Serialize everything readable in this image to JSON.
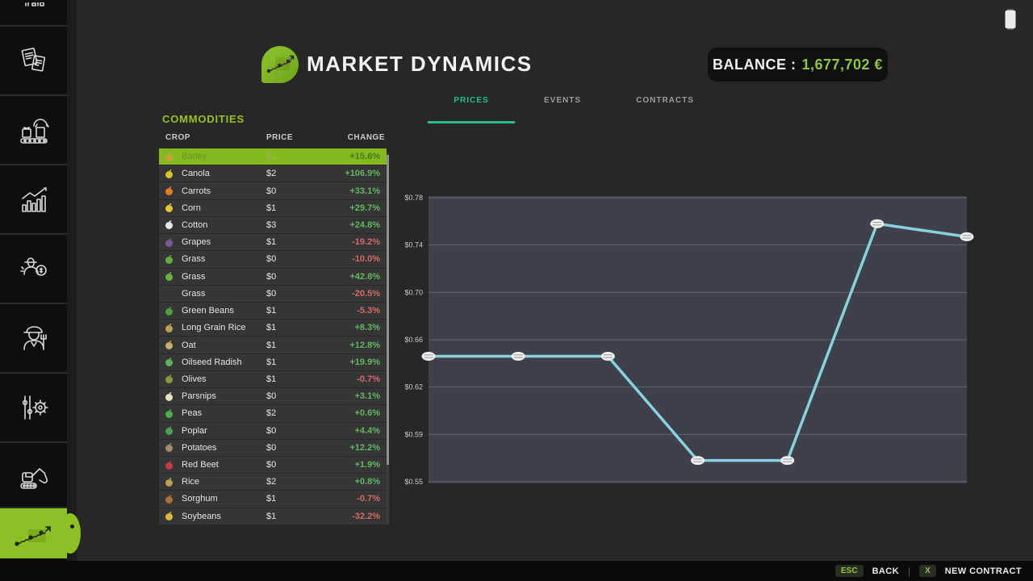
{
  "header": {
    "title": "MARKET DYNAMICS",
    "balance_label": "BALANCE :",
    "balance_value": "1,677,702 €",
    "accent_green": "#8cc024",
    "accent_teal": "#27bd8f"
  },
  "tabs": {
    "items": [
      {
        "label": "PRICES",
        "active": true
      },
      {
        "label": "EVENTS",
        "active": false
      },
      {
        "label": "CONTRACTS",
        "active": false
      }
    ]
  },
  "sidebar": {
    "icons": [
      "animal-partial-icon",
      "documents-icon",
      "production-line-icon",
      "statistics-icon",
      "farmer-finance-icon",
      "farmer-icon",
      "settings-sliders-gear-icon",
      "excavator-icon",
      "market-dynamics-icon"
    ],
    "active_item": "market-dynamics"
  },
  "status_icons": [
    "battery-icon"
  ],
  "commodities": {
    "section_title": "COMMODITIES",
    "columns": [
      "CROP",
      "PRICE",
      "CHANGE"
    ],
    "rows": [
      {
        "crop": "Barley",
        "price": "$1",
        "change": "+15.6%",
        "selected": true,
        "icon_color": "#c7a23c"
      },
      {
        "crop": "Canola",
        "price": "$2",
        "change": "+106.9%",
        "selected": false,
        "icon_color": "#d4c433"
      },
      {
        "crop": "Carrots",
        "price": "$0",
        "change": "+33.1%",
        "selected": false,
        "icon_color": "#e07b2a"
      },
      {
        "crop": "Corn",
        "price": "$1",
        "change": "+29.7%",
        "selected": false,
        "icon_color": "#e5c63a"
      },
      {
        "crop": "Cotton",
        "price": "$3",
        "change": "+24.8%",
        "selected": false,
        "icon_color": "#e9e9e2"
      },
      {
        "crop": "Grapes",
        "price": "$1",
        "change": "-19.2%",
        "selected": false,
        "icon_color": "#7a5a9e"
      },
      {
        "crop": "Grass",
        "price": "$0",
        "change": "-10.0%",
        "selected": false,
        "icon_color": "#5fae3f"
      },
      {
        "crop": "Grass",
        "price": "$0",
        "change": "+42.8%",
        "selected": false,
        "icon_color": "#6cb042"
      },
      {
        "crop": "Grass",
        "price": "$0",
        "change": "-20.5%",
        "selected": false,
        "icon_color": null
      },
      {
        "crop": "Green Beans",
        "price": "$1",
        "change": "-5.3%",
        "selected": false,
        "icon_color": "#4f9e3f"
      },
      {
        "crop": "Long Grain Rice",
        "price": "$1",
        "change": "+8.3%",
        "selected": false,
        "icon_color": "#b9a050"
      },
      {
        "crop": "Oat",
        "price": "$1",
        "change": "+12.8%",
        "selected": false,
        "icon_color": "#c9b06a"
      },
      {
        "crop": "Oilseed Radish",
        "price": "$1",
        "change": "+19.9%",
        "selected": false,
        "icon_color": "#5fae5f"
      },
      {
        "crop": "Olives",
        "price": "$1",
        "change": "-0.7%",
        "selected": false,
        "icon_color": "#8a9a3a"
      },
      {
        "crop": "Parsnips",
        "price": "$0",
        "change": "+3.1%",
        "selected": false,
        "icon_color": "#e8e0c0"
      },
      {
        "crop": "Peas",
        "price": "$2",
        "change": "+0.6%",
        "selected": false,
        "icon_color": "#4fae4f"
      },
      {
        "crop": "Poplar",
        "price": "$0",
        "change": "+4.4%",
        "selected": false,
        "icon_color": "#4f9e4f"
      },
      {
        "crop": "Potatoes",
        "price": "$0",
        "change": "+12.2%",
        "selected": false,
        "icon_color": "#a08a6a"
      },
      {
        "crop": "Red Beet",
        "price": "$0",
        "change": "+1.9%",
        "selected": false,
        "icon_color": "#c43a4a"
      },
      {
        "crop": "Rice",
        "price": "$2",
        "change": "+0.8%",
        "selected": false,
        "icon_color": "#b9a050"
      },
      {
        "crop": "Sorghum",
        "price": "$1",
        "change": "-0.7%",
        "selected": false,
        "icon_color": "#a8743a"
      },
      {
        "crop": "Soybeans",
        "price": "$1",
        "change": "-32.2%",
        "selected": false,
        "icon_color": "#d8b83a"
      }
    ]
  },
  "chart_data": {
    "type": "line",
    "title": "",
    "xlabel": "",
    "ylabel": "",
    "selected_commodity": "Barley",
    "y_axis_tick_labels": [
      "$0.78",
      "$0.74",
      "$0.70",
      "$0.66",
      "$0.62",
      "$0.59",
      "$0.55"
    ],
    "y_tick_values": [
      0.78,
      0.74,
      0.7,
      0.66,
      0.62,
      0.59,
      0.55
    ],
    "series": [
      {
        "name": "Barley price",
        "values": [
          0.646,
          0.646,
          0.646,
          0.568,
          0.568,
          0.758,
          0.747
        ]
      }
    ],
    "x_tick_labels_visible": false,
    "grid": true,
    "legend": false,
    "line_color": "#8bd0de",
    "marker_color": "#efefef",
    "plot_bg": "#3e414b",
    "grid_color": "#61646f"
  },
  "footer": {
    "esc_key": "ESC",
    "back_label": "BACK",
    "divider": "|",
    "x_key": "X",
    "new_contract_label": "NEW CONTRACT"
  }
}
